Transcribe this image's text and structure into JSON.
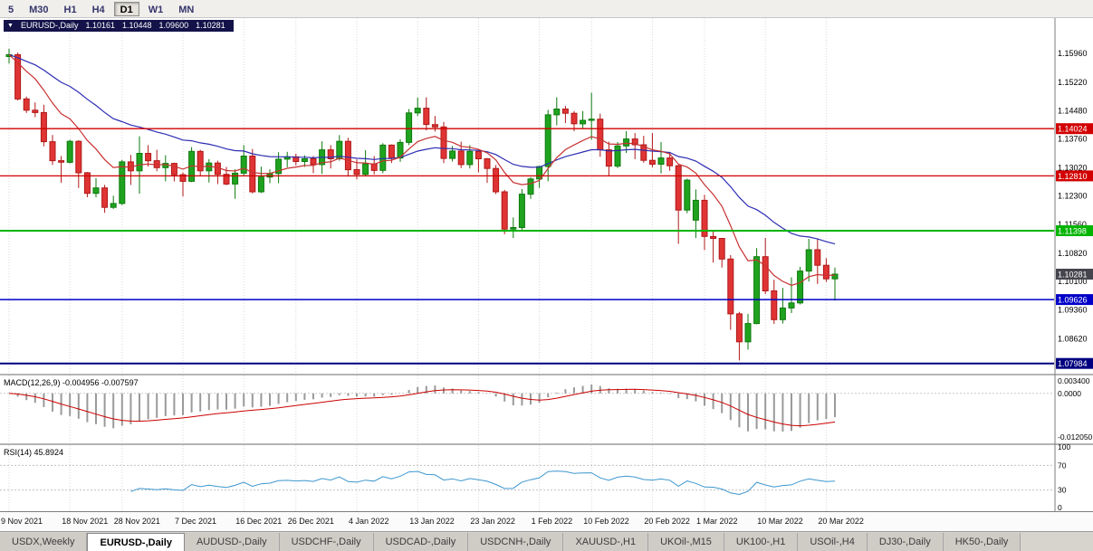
{
  "toolbar": {
    "timeframes": [
      {
        "label": "5",
        "active": false
      },
      {
        "label": "M30",
        "active": false
      },
      {
        "label": "H1",
        "active": false
      },
      {
        "label": "H4",
        "active": false
      },
      {
        "label": "D1",
        "active": true
      },
      {
        "label": "W1",
        "active": false
      },
      {
        "label": "MN",
        "active": false
      }
    ]
  },
  "chart": {
    "symbol_period": "EURUSD-,Daily",
    "open": "1.10161",
    "high": "1.10448",
    "low": "1.09600",
    "close": "1.10281",
    "collapse_arrow": "▼"
  },
  "chart_data": {
    "type": "candlestick",
    "symbol": "EURUSD-",
    "timeframe": "Daily",
    "colors": {
      "up": "#1fa31f",
      "up_border": "#0d7a0d",
      "down": "#e03434",
      "down_border": "#b01818"
    },
    "y_range": {
      "top": 1.1687,
      "bottom": 1.0772
    },
    "candles": [
      [
        1.1588,
        1.1608,
        1.157,
        1.1593
      ],
      [
        1.1593,
        1.1598,
        1.1475,
        1.1479
      ],
      [
        1.1479,
        1.1485,
        1.1443,
        1.145
      ],
      [
        1.145,
        1.147,
        1.1432,
        1.1444
      ],
      [
        1.1444,
        1.1464,
        1.1357,
        1.1369
      ],
      [
        1.1369,
        1.1386,
        1.1309,
        1.132
      ],
      [
        1.132,
        1.1332,
        1.1263,
        1.1316
      ],
      [
        1.1316,
        1.1374,
        1.1313,
        1.137
      ],
      [
        1.137,
        1.1373,
        1.125,
        1.1289
      ],
      [
        1.1289,
        1.1291,
        1.1226,
        1.1236
      ],
      [
        1.1236,
        1.1275,
        1.1226,
        1.125
      ],
      [
        1.125,
        1.1258,
        1.1186,
        1.12
      ],
      [
        1.12,
        1.123,
        1.1196,
        1.121
      ],
      [
        1.121,
        1.1322,
        1.1206,
        1.1317
      ],
      [
        1.1317,
        1.1335,
        1.1258,
        1.1294
      ],
      [
        1.1294,
        1.1383,
        1.1235,
        1.1339
      ],
      [
        1.1339,
        1.136,
        1.1305,
        1.132
      ],
      [
        1.132,
        1.1348,
        1.1293,
        1.1302
      ],
      [
        1.1302,
        1.1334,
        1.1267,
        1.1313
      ],
      [
        1.1313,
        1.1315,
        1.1267,
        1.1284
      ],
      [
        1.1284,
        1.129,
        1.1228,
        1.1267
      ],
      [
        1.1267,
        1.1355,
        1.1265,
        1.1344
      ],
      [
        1.1344,
        1.1348,
        1.128,
        1.1294
      ],
      [
        1.1294,
        1.1324,
        1.1264,
        1.1314
      ],
      [
        1.1314,
        1.132,
        1.126,
        1.1285
      ],
      [
        1.1285,
        1.1304,
        1.1257,
        1.126
      ],
      [
        1.126,
        1.1298,
        1.1222,
        1.1288
      ],
      [
        1.1288,
        1.136,
        1.1282,
        1.1332
      ],
      [
        1.1332,
        1.135,
        1.1236,
        1.124
      ],
      [
        1.124,
        1.1305,
        1.1237,
        1.1278
      ],
      [
        1.1278,
        1.1298,
        1.1262,
        1.1287
      ],
      [
        1.1287,
        1.1342,
        1.1262,
        1.1324
      ],
      [
        1.1324,
        1.1343,
        1.1303,
        1.133
      ],
      [
        1.133,
        1.1338,
        1.1308,
        1.1318
      ],
      [
        1.1318,
        1.1334,
        1.1304,
        1.1325
      ],
      [
        1.1325,
        1.1332,
        1.1288,
        1.131
      ],
      [
        1.131,
        1.137,
        1.1286,
        1.1348
      ],
      [
        1.1348,
        1.136,
        1.13,
        1.1325
      ],
      [
        1.1325,
        1.1386,
        1.132,
        1.137
      ],
      [
        1.137,
        1.1379,
        1.1279,
        1.1297
      ],
      [
        1.1297,
        1.1323,
        1.1272,
        1.1285
      ],
      [
        1.1285,
        1.1347,
        1.128,
        1.1312
      ],
      [
        1.1312,
        1.1332,
        1.1285,
        1.1295
      ],
      [
        1.1295,
        1.1365,
        1.1288,
        1.136
      ],
      [
        1.136,
        1.1362,
        1.1314,
        1.1327
      ],
      [
        1.1327,
        1.1375,
        1.1317,
        1.1367
      ],
      [
        1.1367,
        1.1453,
        1.136,
        1.1443
      ],
      [
        1.1443,
        1.1482,
        1.1435,
        1.1455
      ],
      [
        1.1455,
        1.1483,
        1.1398,
        1.1413
      ],
      [
        1.1413,
        1.1435,
        1.1395,
        1.1407
      ],
      [
        1.1407,
        1.142,
        1.1314,
        1.1326
      ],
      [
        1.1326,
        1.1358,
        1.1318,
        1.1345
      ],
      [
        1.1345,
        1.1369,
        1.1301,
        1.131
      ],
      [
        1.131,
        1.136,
        1.13,
        1.1344
      ],
      [
        1.1344,
        1.1349,
        1.129,
        1.1325
      ],
      [
        1.1325,
        1.1327,
        1.1263,
        1.13
      ],
      [
        1.13,
        1.1309,
        1.1234,
        1.124
      ],
      [
        1.124,
        1.1245,
        1.1131,
        1.1144
      ],
      [
        1.1144,
        1.1174,
        1.1121,
        1.1148
      ],
      [
        1.1148,
        1.1247,
        1.1141,
        1.1234
      ],
      [
        1.1234,
        1.1278,
        1.1222,
        1.1273
      ],
      [
        1.1273,
        1.1307,
        1.125,
        1.1305
      ],
      [
        1.1305,
        1.1451,
        1.1267,
        1.1438
      ],
      [
        1.1438,
        1.1483,
        1.1411,
        1.1453
      ],
      [
        1.1453,
        1.1461,
        1.1417,
        1.1442
      ],
      [
        1.1442,
        1.1448,
        1.1396,
        1.1415
      ],
      [
        1.1415,
        1.1448,
        1.1403,
        1.1424
      ],
      [
        1.1424,
        1.1495,
        1.1374,
        1.1427
      ],
      [
        1.1427,
        1.1441,
        1.133,
        1.1348
      ],
      [
        1.1348,
        1.1369,
        1.128,
        1.1306
      ],
      [
        1.1306,
        1.1368,
        1.1301,
        1.1358
      ],
      [
        1.1358,
        1.1396,
        1.134,
        1.1376
      ],
      [
        1.1376,
        1.1391,
        1.1324,
        1.1361
      ],
      [
        1.1361,
        1.1384,
        1.1315,
        1.1321
      ],
      [
        1.1321,
        1.1391,
        1.1303,
        1.1311
      ],
      [
        1.1311,
        1.1368,
        1.1287,
        1.1327
      ],
      [
        1.1327,
        1.1343,
        1.1294,
        1.1307
      ],
      [
        1.1307,
        1.131,
        1.1106,
        1.1193
      ],
      [
        1.1193,
        1.1274,
        1.1185,
        1.127
      ],
      [
        1.1167,
        1.1246,
        1.1121,
        1.1218
      ],
      [
        1.1218,
        1.1232,
        1.109,
        1.1125
      ],
      [
        1.1125,
        1.1139,
        1.1058,
        1.112
      ],
      [
        1.112,
        1.1121,
        1.1045,
        1.1067
      ],
      [
        1.1067,
        1.1077,
        1.0885,
        1.0926
      ],
      [
        1.0926,
        1.0931,
        1.0806,
        1.0854
      ],
      [
        1.0854,
        1.0926,
        1.0834,
        1.0901
      ],
      [
        1.0901,
        1.1095,
        1.0899,
        1.1073
      ],
      [
        1.1073,
        1.1121,
        1.0977,
        1.0985
      ],
      [
        1.0985,
        1.1014,
        1.09,
        1.0911
      ],
      [
        1.0911,
        1.0993,
        1.0901,
        1.0941
      ],
      [
        1.0941,
        1.102,
        1.0928,
        1.0954
      ],
      [
        1.0954,
        1.1047,
        1.095,
        1.1036
      ],
      [
        1.1036,
        1.1119,
        1.1009,
        1.1091
      ],
      [
        1.1091,
        1.1119,
        1.1003,
        1.1051
      ],
      [
        1.1051,
        1.1069,
        1.1008,
        1.1016
      ],
      [
        1.10161,
        1.10448,
        1.096,
        1.10281
      ]
    ],
    "ma": [
      {
        "period": 28,
        "color": "#2d2db4"
      },
      {
        "period": 10,
        "color": "#c83232"
      }
    ],
    "hlines": [
      {
        "price": 1.14024,
        "label": "1.14024",
        "color": "#d20000",
        "width": 1.3
      },
      {
        "price": 1.1281,
        "label": "1.12810",
        "color": "#d20000",
        "width": 1.3
      },
      {
        "price": 1.11398,
        "label": "1.11398",
        "color": "#00b400",
        "width": 2
      },
      {
        "price": 1.09626,
        "label": "1.09626",
        "color": "#0000c8",
        "width": 1.5
      },
      {
        "price": 1.07984,
        "label": "1.07984",
        "color": "#000080",
        "width": 2
      }
    ],
    "current_price": {
      "value": 1.10281,
      "label": "1.10281",
      "color": "#45454d"
    },
    "price_axis": [
      "1.15960",
      "1.15220",
      "1.14480",
      "1.13760",
      "1.13020",
      "1.12300",
      "1.11560",
      "1.10820",
      "1.10100",
      "1.09360",
      "1.08620"
    ],
    "date_labels": [
      {
        "text": "9 Nov 2021",
        "index": 0
      },
      {
        "text": "18 Nov 2021",
        "index": 7
      },
      {
        "text": "28 Nov 2021",
        "index": 13
      },
      {
        "text": "7 Dec 2021",
        "index": 20
      },
      {
        "text": "16 Dec 2021",
        "index": 27
      },
      {
        "text": "26 Dec 2021",
        "index": 33
      },
      {
        "text": "4 Jan 2022",
        "index": 40
      },
      {
        "text": "13 Jan 2022",
        "index": 47
      },
      {
        "text": "23 Jan 2022",
        "index": 54
      },
      {
        "text": "1 Feb 2022",
        "index": 61
      },
      {
        "text": "10 Feb 2022",
        "index": 67
      },
      {
        "text": "20 Feb 2022",
        "index": 74
      },
      {
        "text": "1 Mar 2022",
        "index": 80
      },
      {
        "text": "10 Mar 2022",
        "index": 87
      },
      {
        "text": "20 Mar 2022",
        "index": 94
      }
    ]
  },
  "macd": {
    "label": "MACD(12,26,9)",
    "values": "-0.004956 -0.007597",
    "axis": [
      "0.003400",
      "0.0000",
      "-0.012050"
    ],
    "range": {
      "max": 0.0042,
      "min": -0.0133
    },
    "histogram_color": "#9a9a9a",
    "signal_color": "#cc0000"
  },
  "rsi": {
    "label": "RSI(14)",
    "value": "45.8924",
    "axis": [
      "100",
      "70",
      "30",
      "0"
    ],
    "levels": [
      70,
      30
    ],
    "line_color": "#3d97cf"
  },
  "tabs": [
    {
      "label": "USDX,Weekly",
      "active": false
    },
    {
      "label": "EURUSD-,Daily",
      "active": true
    },
    {
      "label": "AUDUSD-,Daily",
      "active": false
    },
    {
      "label": "USDCHF-,Daily",
      "active": false
    },
    {
      "label": "USDCAD-,Daily",
      "active": false
    },
    {
      "label": "USDCNH-,Daily",
      "active": false
    },
    {
      "label": "XAUUSD-,H1",
      "active": false
    },
    {
      "label": "UKOil-,M15",
      "active": false
    },
    {
      "label": "UK100-,H1",
      "active": false
    },
    {
      "label": "USOil-,H4",
      "active": false
    },
    {
      "label": "DJ30-,Daily",
      "active": false
    },
    {
      "label": "HK50-,Daily",
      "active": false
    }
  ]
}
